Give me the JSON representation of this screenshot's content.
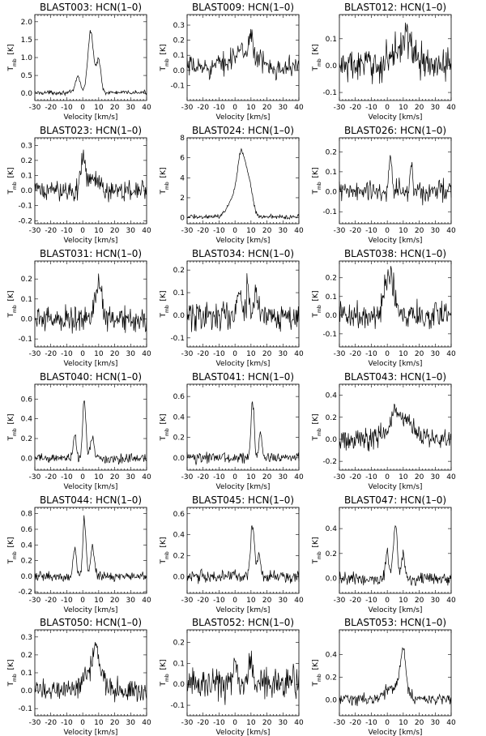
{
  "figure": {
    "xlabel": "Velocity [km/s]",
    "ylabel_main": "T",
    "ylabel_sub": "mb",
    "ylabel_unit": "[K]"
  },
  "chart_data": [
    {
      "type": "line",
      "title": "BLAST003: HCN(1–0)",
      "xlim": [
        -30,
        40
      ],
      "ylim": [
        -0.2,
        2.2
      ],
      "yticks": [
        0.0,
        0.5,
        1.0,
        1.5,
        2.0
      ],
      "ytick_labels": [
        "0.0",
        "0.5",
        "1.0",
        "1.5",
        "2.0"
      ],
      "xticks": [
        -30,
        -20,
        -10,
        0,
        10,
        20,
        30,
        40
      ],
      "xtick_labels": [
        "-30",
        "-20",
        "-10",
        "0",
        "10",
        "20",
        "30",
        "40"
      ],
      "noise": 0.04,
      "baseline": 0.02,
      "components": [
        {
          "center": -3,
          "amp": 0.45,
          "width": 1.5
        },
        {
          "center": 5,
          "amp": 1.7,
          "width": 1.8
        },
        {
          "center": 10,
          "amp": 0.9,
          "width": 1.4
        }
      ]
    },
    {
      "type": "line",
      "title": "BLAST009: HCN(1–0)",
      "xlim": [
        -30,
        40
      ],
      "ylim": [
        -0.2,
        0.37
      ],
      "yticks": [
        -0.1,
        0.0,
        0.1,
        0.2,
        0.3
      ],
      "ytick_labels": [
        "-0.1",
        "0.0",
        "0.1",
        "0.2",
        "0.3"
      ],
      "xticks": [
        -30,
        -20,
        -10,
        0,
        10,
        20,
        30,
        40
      ],
      "xtick_labels": [
        "-30",
        "-20",
        "-10",
        "0",
        "10",
        "20",
        "30",
        "40"
      ],
      "noise": 0.05,
      "baseline": 0.02,
      "components": [
        {
          "center": 5,
          "amp": 0.1,
          "width": 8
        },
        {
          "center": 10,
          "amp": 0.15,
          "width": 1.2
        }
      ]
    },
    {
      "type": "line",
      "title": "BLAST012: HCN(1–0)",
      "xlim": [
        -30,
        40
      ],
      "ylim": [
        -0.13,
        0.19
      ],
      "yticks": [
        -0.1,
        0.0,
        0.1
      ],
      "ytick_labels": [
        "-0.1",
        "0.0",
        "0.1"
      ],
      "xticks": [
        -30,
        -20,
        -10,
        0,
        10,
        20,
        30,
        40
      ],
      "xtick_labels": [
        "-30",
        "-20",
        "-10",
        "0",
        "10",
        "20",
        "30",
        "40"
      ],
      "noise": 0.045,
      "baseline": 0.0,
      "components": [
        {
          "center": 10,
          "amp": 0.08,
          "width": 6
        },
        {
          "center": 12,
          "amp": 0.06,
          "width": 1.2
        }
      ]
    },
    {
      "type": "line",
      "title": "BLAST023: HCN(1–0)",
      "xlim": [
        -30,
        40
      ],
      "ylim": [
        -0.22,
        0.35
      ],
      "yticks": [
        -0.2,
        -0.1,
        0.0,
        0.1,
        0.2,
        0.3
      ],
      "ytick_labels": [
        "-0.2",
        "-0.1",
        "0.0",
        "0.1",
        "0.2",
        "0.3"
      ],
      "xticks": [
        -30,
        -20,
        -10,
        0,
        10,
        20,
        30,
        40
      ],
      "xtick_labels": [
        "-30",
        "-20",
        "-10",
        "0",
        "10",
        "20",
        "30",
        "40"
      ],
      "noise": 0.05,
      "baseline": 0.0,
      "components": [
        {
          "center": 0,
          "amp": 0.2,
          "width": 1.3
        },
        {
          "center": 5,
          "amp": 0.08,
          "width": 4
        }
      ]
    },
    {
      "type": "line",
      "title": "BLAST024: HCN(1–0)",
      "xlim": [
        -30,
        40
      ],
      "ylim": [
        -0.6,
        8.0
      ],
      "yticks": [
        0,
        2,
        4,
        6,
        8
      ],
      "ytick_labels": [
        "0",
        "2",
        "4",
        "6",
        "8"
      ],
      "xticks": [
        -30,
        -20,
        -10,
        0,
        10,
        20,
        30,
        40
      ],
      "xtick_labels": [
        "-30",
        "-20",
        "-10",
        "0",
        "10",
        "20",
        "30",
        "40"
      ],
      "noise": 0.15,
      "baseline": 0.1,
      "components": [
        {
          "center": -2,
          "amp": 1.6,
          "width": 3
        },
        {
          "center": 4,
          "amp": 6.2,
          "width": 2.5
        },
        {
          "center": 9,
          "amp": 3.0,
          "width": 2.2
        }
      ]
    },
    {
      "type": "line",
      "title": "BLAST026: HCN(1–0)",
      "xlim": [
        -30,
        40
      ],
      "ylim": [
        -0.16,
        0.27
      ],
      "yticks": [
        -0.1,
        0.0,
        0.1,
        0.2
      ],
      "ytick_labels": [
        "-0.1",
        "0.0",
        "0.1",
        "0.2"
      ],
      "xticks": [
        -30,
        -20,
        -10,
        0,
        10,
        20,
        30,
        40
      ],
      "xtick_labels": [
        "-30",
        "-20",
        "-10",
        "0",
        "10",
        "20",
        "30",
        "40"
      ],
      "noise": 0.04,
      "baseline": 0.0,
      "components": [
        {
          "center": 2,
          "amp": 0.18,
          "width": 0.8
        },
        {
          "center": 15,
          "amp": 0.14,
          "width": 0.8
        }
      ]
    },
    {
      "type": "line",
      "title": "BLAST031: HCN(1–0)",
      "xlim": [
        -30,
        40
      ],
      "ylim": [
        -0.14,
        0.29
      ],
      "yticks": [
        -0.1,
        0.0,
        0.1,
        0.2
      ],
      "ytick_labels": [
        "-0.1",
        "0.0",
        "0.1",
        "0.2"
      ],
      "xticks": [
        -30,
        -20,
        -10,
        0,
        10,
        20,
        30,
        40
      ],
      "xtick_labels": [
        "-30",
        "-20",
        "-10",
        "0",
        "10",
        "20",
        "30",
        "40"
      ],
      "noise": 0.045,
      "baseline": 0.0,
      "components": [
        {
          "center": 10,
          "amp": 0.2,
          "width": 2
        }
      ]
    },
    {
      "type": "line",
      "title": "BLAST034: HCN(1–0)",
      "xlim": [
        -30,
        40
      ],
      "ylim": [
        -0.14,
        0.24
      ],
      "yticks": [
        -0.1,
        0.0,
        0.1,
        0.2
      ],
      "ytick_labels": [
        "-0.1",
        "0.0",
        "0.1",
        "0.2"
      ],
      "xticks": [
        -30,
        -20,
        -10,
        0,
        10,
        20,
        30,
        40
      ],
      "xtick_labels": [
        "-30",
        "-20",
        "-10",
        "0",
        "10",
        "20",
        "30",
        "40"
      ],
      "noise": 0.05,
      "baseline": 0.0,
      "components": [
        {
          "center": 3,
          "amp": 0.12,
          "width": 1
        },
        {
          "center": 8,
          "amp": 0.12,
          "width": 1
        },
        {
          "center": 13,
          "amp": 0.1,
          "width": 1.2
        }
      ]
    },
    {
      "type": "line",
      "title": "BLAST038: HCN(1–0)",
      "xlim": [
        -30,
        40
      ],
      "ylim": [
        -0.17,
        0.29
      ],
      "yticks": [
        -0.1,
        0.0,
        0.1,
        0.2
      ],
      "ytick_labels": [
        "-0.1",
        "0.0",
        "0.1",
        "0.2"
      ],
      "xticks": [
        -30,
        -20,
        -10,
        0,
        10,
        20,
        30,
        40
      ],
      "xtick_labels": [
        "-30",
        "-20",
        "-10",
        "0",
        "10",
        "20",
        "30",
        "40"
      ],
      "noise": 0.05,
      "baseline": 0.0,
      "components": [
        {
          "center": 2,
          "amp": 0.2,
          "width": 2.5
        },
        {
          "center": -2,
          "amp": 0.08,
          "width": 1.5
        }
      ]
    },
    {
      "type": "line",
      "title": "BLAST040: HCN(1–0)",
      "xlim": [
        -30,
        40
      ],
      "ylim": [
        -0.12,
        0.75
      ],
      "yticks": [
        0.0,
        0.2,
        0.4,
        0.6
      ],
      "ytick_labels": [
        "0.0",
        "0.2",
        "0.4",
        "0.6"
      ],
      "xticks": [
        -30,
        -20,
        -10,
        0,
        10,
        20,
        30,
        40
      ],
      "xtick_labels": [
        "-30",
        "-20",
        "-10",
        "0",
        "10",
        "20",
        "30",
        "40"
      ],
      "noise": 0.035,
      "baseline": 0.0,
      "components": [
        {
          "center": -5,
          "amp": 0.25,
          "width": 1
        },
        {
          "center": 1,
          "amp": 0.6,
          "width": 1
        },
        {
          "center": 6,
          "amp": 0.2,
          "width": 1.2
        }
      ]
    },
    {
      "type": "line",
      "title": "BLAST041: HCN(1–0)",
      "xlim": [
        -30,
        40
      ],
      "ylim": [
        -0.12,
        0.72
      ],
      "yticks": [
        0.0,
        0.2,
        0.4,
        0.6
      ],
      "ytick_labels": [
        "0.0",
        "0.2",
        "0.4",
        "0.6"
      ],
      "xticks": [
        -30,
        -20,
        -10,
        0,
        10,
        20,
        30,
        40
      ],
      "xtick_labels": [
        "-30",
        "-20",
        "-10",
        "0",
        "10",
        "20",
        "30",
        "40"
      ],
      "noise": 0.035,
      "baseline": 0.0,
      "components": [
        {
          "center": 11,
          "amp": 0.55,
          "width": 1
        },
        {
          "center": 16,
          "amp": 0.25,
          "width": 0.9
        }
      ]
    },
    {
      "type": "line",
      "title": "BLAST043: HCN(1–0)",
      "xlim": [
        -30,
        40
      ],
      "ylim": [
        -0.28,
        0.5
      ],
      "yticks": [
        -0.2,
        0.0,
        0.2,
        0.4
      ],
      "ytick_labels": [
        "-0.2",
        "0.0",
        "0.2",
        "0.4"
      ],
      "xticks": [
        -30,
        -20,
        -10,
        0,
        10,
        20,
        30,
        40
      ],
      "xtick_labels": [
        "-30",
        "-20",
        "-10",
        "0",
        "10",
        "20",
        "30",
        "40"
      ],
      "noise": 0.07,
      "baseline": 0.0,
      "components": [
        {
          "center": 8,
          "amp": 0.2,
          "width": 7
        },
        {
          "center": 5,
          "amp": 0.12,
          "width": 1
        }
      ]
    },
    {
      "type": "line",
      "title": "BLAST044: HCN(1–0)",
      "xlim": [
        -30,
        40
      ],
      "ylim": [
        -0.22,
        0.88
      ],
      "yticks": [
        -0.2,
        0.0,
        0.2,
        0.4,
        0.6,
        0.8
      ],
      "ytick_labels": [
        "-0.2",
        "0.0",
        "0.2",
        "0.4",
        "0.6",
        "0.8"
      ],
      "xticks": [
        -30,
        -20,
        -10,
        0,
        10,
        20,
        30,
        40
      ],
      "xtick_labels": [
        "-30",
        "-20",
        "-10",
        "0",
        "10",
        "20",
        "30",
        "40"
      ],
      "noise": 0.04,
      "baseline": 0.0,
      "components": [
        {
          "center": -5,
          "amp": 0.35,
          "width": 1
        },
        {
          "center": 1,
          "amp": 0.72,
          "width": 1
        },
        {
          "center": 6,
          "amp": 0.35,
          "width": 1.2
        }
      ]
    },
    {
      "type": "line",
      "title": "BLAST045: HCN(1–0)",
      "xlim": [
        -30,
        40
      ],
      "ylim": [
        -0.16,
        0.66
      ],
      "yticks": [
        0.0,
        0.2,
        0.4,
        0.6
      ],
      "ytick_labels": [
        "0.0",
        "0.2",
        "0.4",
        "0.6"
      ],
      "xticks": [
        -30,
        -20,
        -10,
        0,
        10,
        20,
        30,
        40
      ],
      "xtick_labels": [
        "-30",
        "-20",
        "-10",
        "0",
        "10",
        "20",
        "30",
        "40"
      ],
      "noise": 0.04,
      "baseline": 0.0,
      "components": [
        {
          "center": 11,
          "amp": 0.5,
          "width": 1.2
        },
        {
          "center": 15,
          "amp": 0.2,
          "width": 1
        }
      ]
    },
    {
      "type": "line",
      "title": "BLAST047: HCN(1–0)",
      "xlim": [
        -30,
        40
      ],
      "ylim": [
        -0.12,
        0.57
      ],
      "yticks": [
        0.0,
        0.2,
        0.4
      ],
      "ytick_labels": [
        "0.0",
        "0.2",
        "0.4"
      ],
      "xticks": [
        -30,
        -20,
        -10,
        0,
        10,
        20,
        30,
        40
      ],
      "xtick_labels": [
        "-30",
        "-20",
        "-10",
        "0",
        "10",
        "20",
        "30",
        "40"
      ],
      "noise": 0.035,
      "baseline": 0.0,
      "components": [
        {
          "center": 0,
          "amp": 0.2,
          "width": 1
        },
        {
          "center": 5,
          "amp": 0.45,
          "width": 1.2
        },
        {
          "center": 10,
          "amp": 0.2,
          "width": 1
        }
      ]
    },
    {
      "type": "line",
      "title": "BLAST050: HCN(1–0)",
      "xlim": [
        -30,
        40
      ],
      "ylim": [
        -0.14,
        0.34
      ],
      "yticks": [
        -0.1,
        0.0,
        0.1,
        0.2,
        0.3
      ],
      "ytick_labels": [
        "-0.1",
        "0.0",
        "0.1",
        "0.2",
        "0.3"
      ],
      "xticks": [
        -30,
        -20,
        -10,
        0,
        10,
        20,
        30,
        40
      ],
      "xtick_labels": [
        "-30",
        "-20",
        "-10",
        "0",
        "10",
        "20",
        "30",
        "40"
      ],
      "noise": 0.045,
      "baseline": 0.0,
      "components": [
        {
          "center": 7,
          "amp": 0.15,
          "width": 5
        },
        {
          "center": 8,
          "amp": 0.12,
          "width": 1.2
        }
      ]
    },
    {
      "type": "line",
      "title": "BLAST052: HCN(1–0)",
      "xlim": [
        -30,
        40
      ],
      "ylim": [
        -0.15,
        0.26
      ],
      "yticks": [
        -0.1,
        0.0,
        0.1,
        0.2
      ],
      "ytick_labels": [
        "-0.1",
        "0.0",
        "0.1",
        "0.2"
      ],
      "xticks": [
        -30,
        -20,
        -10,
        0,
        10,
        20,
        30,
        40
      ],
      "xtick_labels": [
        "-30",
        "-20",
        "-10",
        "0",
        "10",
        "20",
        "30",
        "40"
      ],
      "noise": 0.055,
      "baseline": 0.0,
      "components": [
        {
          "center": 0,
          "amp": 0.15,
          "width": 1
        },
        {
          "center": 10,
          "amp": 0.1,
          "width": 1.5
        }
      ]
    },
    {
      "type": "line",
      "title": "BLAST053: HCN(1–0)",
      "xlim": [
        -30,
        40
      ],
      "ylim": [
        -0.14,
        0.62
      ],
      "yticks": [
        0.0,
        0.2,
        0.4
      ],
      "ytick_labels": [
        "0.0",
        "0.2",
        "0.4"
      ],
      "xticks": [
        -30,
        -20,
        -10,
        0,
        10,
        20,
        30,
        40
      ],
      "xtick_labels": [
        "-30",
        "-20",
        "-10",
        "0",
        "10",
        "20",
        "30",
        "40"
      ],
      "noise": 0.035,
      "baseline": 0.0,
      "components": [
        {
          "center": 5,
          "amp": 0.12,
          "width": 6
        },
        {
          "center": 10,
          "amp": 0.38,
          "width": 1.6
        }
      ]
    }
  ]
}
